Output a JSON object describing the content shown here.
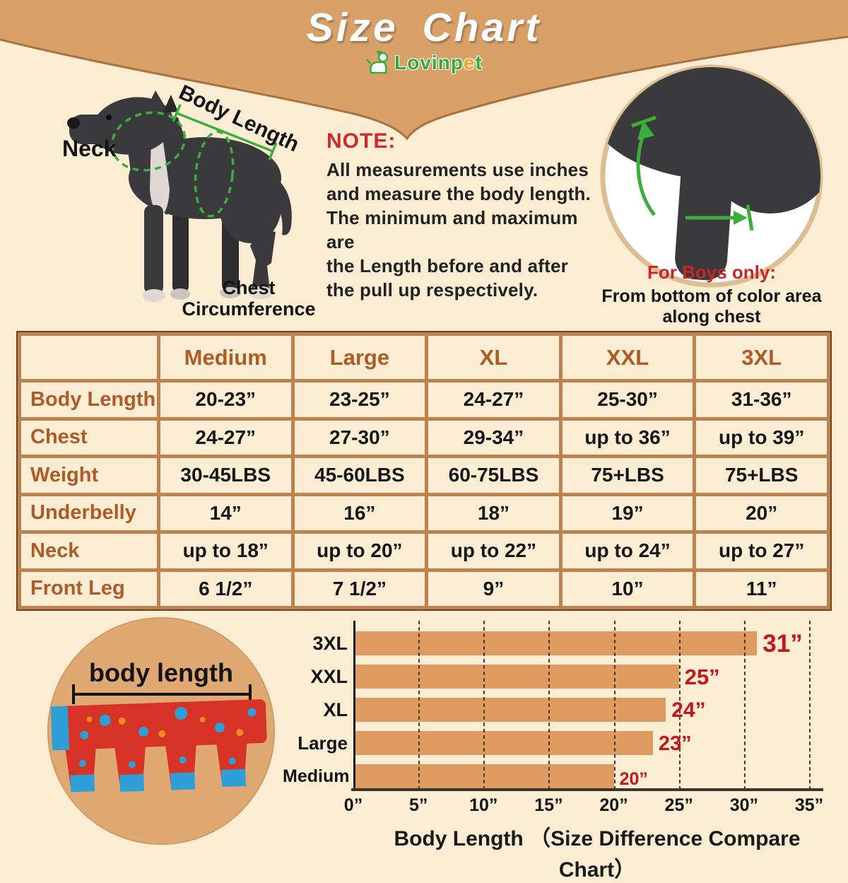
{
  "header": {
    "title": "Size Chart",
    "brand_prefix": "Lovinp",
    "brand_mid": "e",
    "brand_suffix": "t"
  },
  "diagram": {
    "neck_label": "Neck",
    "body_length_label": "Body Length",
    "chest_label_line1": "Chest",
    "chest_label_line2": "Circumference"
  },
  "note": {
    "heading": "NOTE:",
    "body": "All measurements use inches\nand measure the body length.\nThe minimum and maximum are\nthe Length before and after\nthe pull up respectively."
  },
  "boys_note": {
    "heading": "For Boys only:",
    "body": "From bottom of color area\nalong chest"
  },
  "size_table": {
    "corner": "",
    "columns": [
      "Medium",
      "Large",
      "XL",
      "XXL",
      "3XL"
    ],
    "rows": [
      {
        "label": "Body Length",
        "values": [
          "20-23”",
          "23-25”",
          "24-27”",
          "25-30”",
          "31-36”"
        ]
      },
      {
        "label": "Chest",
        "values": [
          "24-27”",
          "27-30”",
          "29-34”",
          "up to 36”",
          "up to 39”"
        ]
      },
      {
        "label": "Weight",
        "values": [
          "30-45LBS",
          "45-60LBS",
          "60-75LBS",
          "75+LBS",
          "75+LBS"
        ]
      },
      {
        "label": "Underbelly",
        "values": [
          "14”",
          "16”",
          "18”",
          "19”",
          "20”"
        ]
      },
      {
        "label": "Neck",
        "values": [
          "up to 18”",
          "up to 20”",
          "up to 22”",
          "up to 24”",
          "up to 27”"
        ]
      },
      {
        "label": "Front Leg",
        "values": [
          "6 1/2”",
          "7 1/2”",
          "9”",
          "10”",
          "11”"
        ]
      }
    ]
  },
  "body_length_circle": {
    "label": "body length"
  },
  "chart_data": {
    "type": "bar",
    "orientation": "horizontal",
    "title": "Body Length （Size Difference Compare Chart）",
    "xlabel": "Body Length",
    "categories": [
      "3XL",
      "XXL",
      "XL",
      "Large",
      "Medium"
    ],
    "values": [
      31,
      25,
      24,
      23,
      20
    ],
    "value_labels": [
      "31”",
      "25”",
      "24”",
      "23”",
      "20”"
    ],
    "x_tick_values": [
      0,
      5,
      10,
      15,
      20,
      25,
      30,
      35
    ],
    "x_tick_labels": [
      "0”",
      "5”",
      "10”",
      "15”",
      "20”",
      "25”",
      "30”",
      "35”"
    ],
    "xlim": [
      0,
      35
    ],
    "grid": "dashed-vertical",
    "legend": "none",
    "bar_color": "#DF9B5F",
    "value_label_color": "#C5161C"
  },
  "colors": {
    "background": "#FBEDD3",
    "banner": "#D9A167",
    "banner_outline": "#AA7140",
    "table_border": "#BE8150",
    "table_border_dark": "#6B4423",
    "table_heading_text": "#AE5B28",
    "cell_text": "#171717",
    "accent_red": "#C62828",
    "accent_green": "#3BAE3B",
    "brand_green": "#2FAE3F",
    "brand_orange": "#F59E1B",
    "circle_tan": "#E0A873",
    "garment_red": "#D63226",
    "garment_blue": "#2F9FD8",
    "dog_gray": "#3A393B"
  }
}
